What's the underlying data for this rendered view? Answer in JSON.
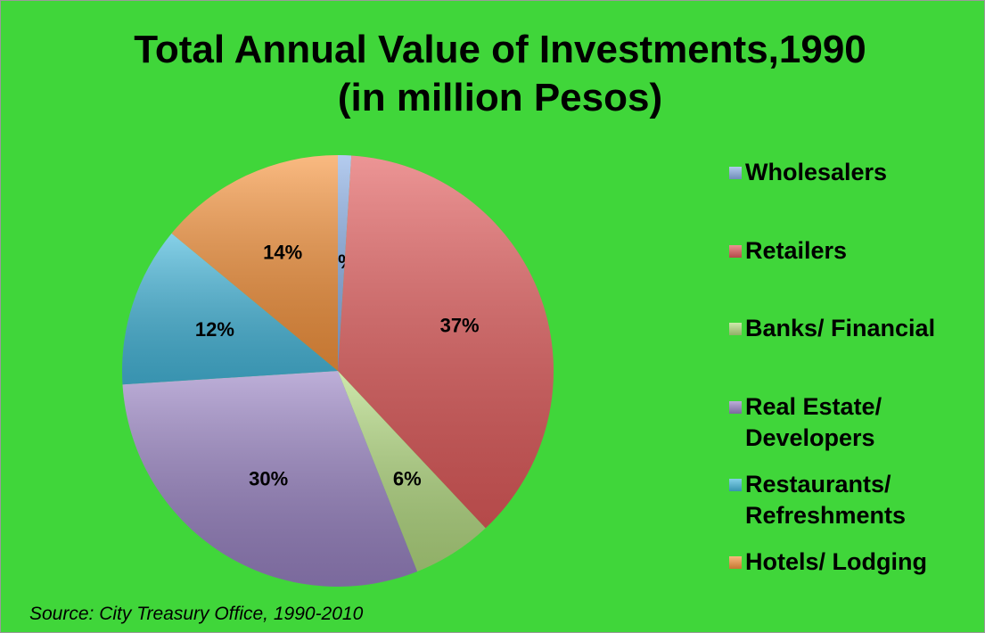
{
  "chart_data": {
    "type": "pie",
    "title": "Total Annual Value of Investments,1990 (in million Pesos)",
    "categories": [
      "Wholesalers",
      "Retailers",
      "Banks/ Financial",
      "Real Estate/ Developers",
      "Restaurants/ Refreshments",
      "Hotels/ Lodging"
    ],
    "values": [
      1,
      37,
      6,
      30,
      12,
      14
    ],
    "value_labels": [
      "1%",
      "37%",
      "6%",
      "30%",
      "12%",
      "14%"
    ],
    "colors": [
      "#8cb0e6",
      "#e25c5c",
      "#b5dc82",
      "#9a84c4",
      "#46b8dc",
      "#f7953e"
    ],
    "legend": "right",
    "source": "Source: City Treasury Office, 1990-2010"
  }
}
